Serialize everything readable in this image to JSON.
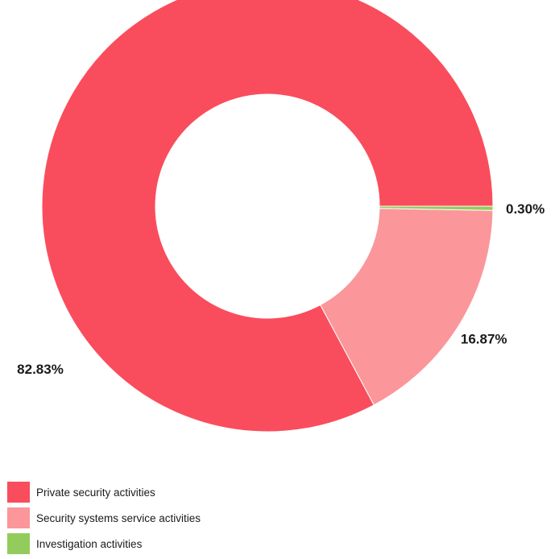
{
  "chart_data": {
    "type": "pie",
    "donut": true,
    "title": "",
    "categories": [
      "Private security activities",
      "Security systems service activities",
      "Investigation activities"
    ],
    "values": [
      82.83,
      16.87,
      0.3
    ],
    "value_labels": [
      "82.83%",
      "16.87%",
      "0.30%"
    ],
    "colors": [
      "#f94d5d",
      "#fb969a",
      "#93cc5c"
    ],
    "legend_position": "bottom-left"
  }
}
